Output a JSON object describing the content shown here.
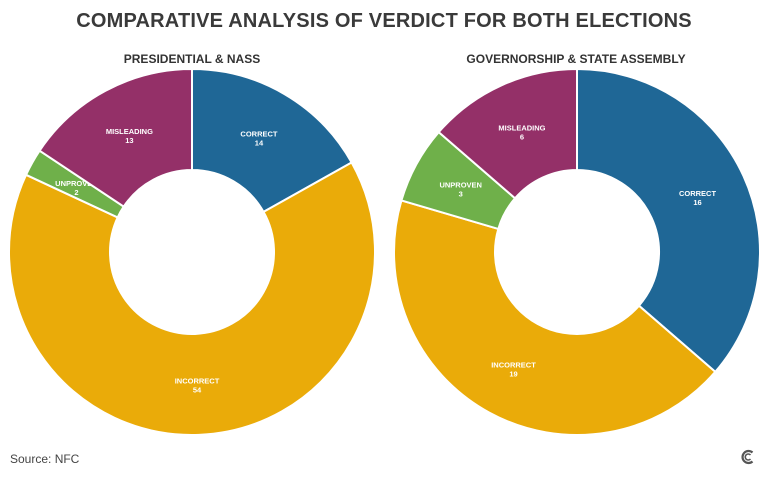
{
  "title": "COMPARATIVE ANALYSIS OF VERDICT FOR BOTH ELECTIONS",
  "source": "Source: NFC",
  "logo_icon": "c-logo-icon",
  "chart_data": [
    {
      "type": "pie",
      "title": "PRESIDENTIAL & NASS",
      "categories": [
        "CORRECT",
        "INCORRECT",
        "UNPROVEN",
        "MISLEADING"
      ],
      "values": [
        14,
        54,
        2,
        13
      ],
      "colors": [
        "#1f6796",
        "#eaab09",
        "#6fb04a",
        "#943068"
      ]
    },
    {
      "type": "pie",
      "title": "GOVERNORSHIP & STATE ASSEMBLY",
      "categories": [
        "CORRECT",
        "INCORRECT",
        "UNPROVEN",
        "MISLEADING"
      ],
      "values": [
        16,
        19,
        3,
        6
      ],
      "colors": [
        "#1f6796",
        "#eaab09",
        "#6fb04a",
        "#943068"
      ]
    }
  ]
}
